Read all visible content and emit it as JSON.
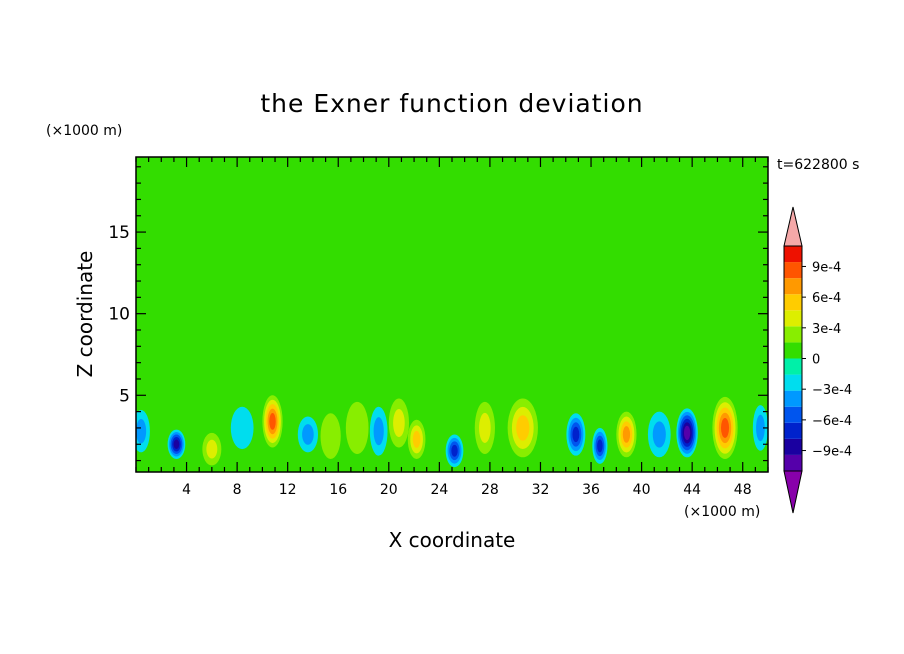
{
  "chart_data": {
    "type": "heatmap",
    "title": "the Exner function deviation",
    "xlabel": "X coordinate",
    "ylabel": "Z coordinate",
    "x_unit": "(×1000 m)",
    "y_unit": "(×1000 m)",
    "time_label": "t=622800 s",
    "xlim": [
      0,
      50
    ],
    "ylim": [
      0.3,
      19.6
    ],
    "xticks": [
      4,
      8,
      12,
      16,
      20,
      24,
      28,
      32,
      36,
      40,
      44,
      48
    ],
    "xtick_labels": [
      "4",
      "8",
      "12",
      "16",
      "20",
      "24",
      "28",
      "32",
      "36",
      "40",
      "44",
      "48"
    ],
    "yticks": [
      5,
      10,
      15
    ],
    "ytick_labels": [
      "5",
      "10",
      "15"
    ],
    "colorbar": {
      "tick_values": [
        0.0009,
        0.0006,
        0.0003,
        0,
        -0.0003,
        -0.0006,
        -0.0009
      ],
      "tick_labels": [
        "9e-4",
        "6e-4",
        "3e-4",
        "0",
        "−3e-4",
        "−6e-4",
        "−9e-4"
      ],
      "levels": [
        -0.0011,
        -0.0009,
        -0.00075,
        -0.0006,
        -0.00045,
        -0.0003,
        -0.00015,
        0,
        0.00015,
        0.0003,
        0.00045,
        0.0006,
        0.00075,
        0.0009,
        0.0011
      ],
      "colors": [
        "#8800aa",
        "#5500aa",
        "#1a00a0",
        "#0022cc",
        "#0055ee",
        "#0099ff",
        "#00ddee",
        "#00f0a8",
        "#33dd00",
        "#88ee00",
        "#ddee00",
        "#ffcc00",
        "#ff9900",
        "#ff5500",
        "#ee1100",
        "#f5a8a8"
      ]
    },
    "background_level": "0",
    "features": [
      {
        "x": 0.4,
        "z": 2.8,
        "value": -0.00045,
        "sx": 0.7,
        "sz": 1.3
      },
      {
        "x": 3.2,
        "z": 2.0,
        "value": -0.0008,
        "sx": 0.7,
        "sz": 0.9
      },
      {
        "x": 6.0,
        "z": 1.7,
        "value": 0.00045,
        "sx": 0.75,
        "sz": 1.0
      },
      {
        "x": 8.4,
        "z": 3.0,
        "value": -0.00025,
        "sx": 0.9,
        "sz": 1.3
      },
      {
        "x": 10.8,
        "z": 3.4,
        "value": 0.00085,
        "sx": 0.8,
        "sz": 1.6
      },
      {
        "x": 13.6,
        "z": 2.6,
        "value": -0.0004,
        "sx": 0.8,
        "sz": 1.1
      },
      {
        "x": 15.4,
        "z": 2.5,
        "value": 0.00025,
        "sx": 0.8,
        "sz": 1.4
      },
      {
        "x": 17.5,
        "z": 3.0,
        "value": 0.0002,
        "sx": 0.9,
        "sz": 1.6
      },
      {
        "x": 19.2,
        "z": 2.8,
        "value": -0.00045,
        "sx": 0.7,
        "sz": 1.5
      },
      {
        "x": 20.8,
        "z": 3.3,
        "value": 0.00045,
        "sx": 0.8,
        "sz": 1.5
      },
      {
        "x": 22.2,
        "z": 2.3,
        "value": 0.00055,
        "sx": 0.7,
        "sz": 1.2
      },
      {
        "x": 25.2,
        "z": 1.6,
        "value": -0.00065,
        "sx": 0.7,
        "sz": 1.0
      },
      {
        "x": 27.6,
        "z": 3.0,
        "value": 0.00045,
        "sx": 0.8,
        "sz": 1.6
      },
      {
        "x": 30.6,
        "z": 3.0,
        "value": 0.0006,
        "sx": 1.2,
        "sz": 1.8
      },
      {
        "x": 34.8,
        "z": 2.6,
        "value": -0.00075,
        "sx": 0.75,
        "sz": 1.3
      },
      {
        "x": 36.7,
        "z": 1.9,
        "value": -0.0007,
        "sx": 0.6,
        "sz": 1.1
      },
      {
        "x": 38.8,
        "z": 2.6,
        "value": 0.00065,
        "sx": 0.8,
        "sz": 1.4
      },
      {
        "x": 41.4,
        "z": 2.6,
        "value": -0.00035,
        "sx": 0.9,
        "sz": 1.4
      },
      {
        "x": 43.6,
        "z": 2.7,
        "value": -0.00095,
        "sx": 0.85,
        "sz": 1.5
      },
      {
        "x": 46.6,
        "z": 3.0,
        "value": 0.0008,
        "sx": 1.0,
        "sz": 1.9
      },
      {
        "x": 49.4,
        "z": 3.0,
        "value": -0.00035,
        "sx": 0.6,
        "sz": 1.4
      }
    ]
  }
}
